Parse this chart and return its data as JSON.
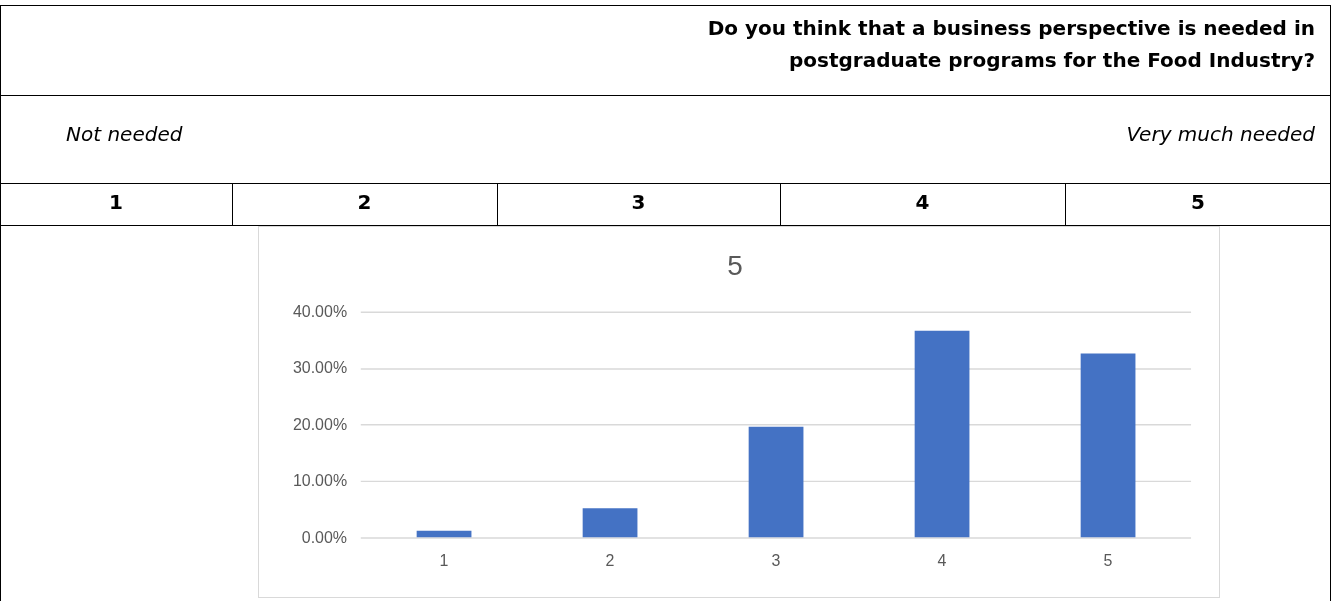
{
  "chart_data": {
    "type": "bar",
    "title": "5",
    "annotations": [
      "Do you think that a business perspective is needed in postgraduate programs for the Food Industry?",
      "Not needed",
      "Very much needed",
      "1",
      "2",
      "3",
      "4",
      "5"
    ],
    "categories": [
      "1",
      "2",
      "3",
      "4",
      "5"
    ],
    "values": [
      1.3,
      5.3,
      19.7,
      36.7,
      32.7
    ],
    "color": "#4472c4",
    "ylim": [
      0,
      40
    ],
    "yticks": [
      {
        "value": 0,
        "label": "0.00%"
      },
      {
        "value": 10,
        "label": "10.00%"
      },
      {
        "value": 20,
        "label": "20.00%"
      },
      {
        "value": 30,
        "label": "30.00%"
      },
      {
        "value": 40,
        "label": "40.00%"
      }
    ],
    "grid": "y",
    "legend": false
  }
}
